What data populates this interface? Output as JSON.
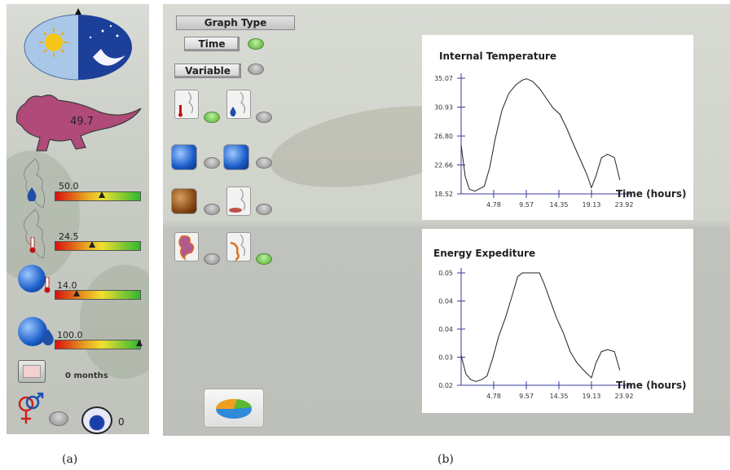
{
  "panel_a": {
    "body_temperature": "49.7",
    "humidity_value": "50.0",
    "humidity_level": 0.55,
    "temperature_value": "24.5",
    "temperature_level": 0.43,
    "env_temperature_value": "14.0",
    "env_temperature_level": 0.25,
    "env_humidity_value": "100.0",
    "env_humidity_level": 0.99,
    "months_label": "0 months",
    "offspring_count": "0",
    "icons": [
      "day-night-dial-icon",
      "lizard-icon",
      "water-drop-icon",
      "thermometer-icon",
      "globe-thermometer-icon",
      "globe-drop-icon",
      "calendar-icon",
      "gender-icon",
      "egg-icon"
    ]
  },
  "panel_b": {
    "graph_type_label": "Graph Type",
    "time_button": "Time",
    "variable_button": "Variable",
    "toggles": [
      {
        "name": "time",
        "on": true
      },
      {
        "name": "variable",
        "on": false
      },
      {
        "name": "internal-temperature",
        "on": true
      },
      {
        "name": "internal-water",
        "on": false
      },
      {
        "name": "env-temperature",
        "on": false
      },
      {
        "name": "env-humidity",
        "on": false
      },
      {
        "name": "soil-temperature",
        "on": false
      },
      {
        "name": "substrate",
        "on": false
      },
      {
        "name": "energy",
        "on": false
      },
      {
        "name": "energy-expenditure",
        "on": true
      }
    ]
  },
  "captions": {
    "a": "(a)",
    "b": "(b)"
  },
  "chart_data": [
    {
      "type": "line",
      "title": "Internal Temperature",
      "xlabel": "Time (hours)",
      "ylabel": "",
      "x_ticks": [
        "4.78",
        "9.57",
        "14.35",
        "19.13",
        "23.92"
      ],
      "y_ticks": [
        "18.52",
        "22.66",
        "26.80",
        "30.93",
        "35.07"
      ],
      "xlim": [
        0,
        23.92
      ],
      "ylim": [
        18.52,
        35.07
      ],
      "color": "#222222",
      "x": [
        0,
        0.6,
        1.2,
        2,
        2.6,
        3.4,
        4.2,
        5,
        6,
        7,
        8,
        9,
        9.6,
        10.5,
        11.5,
        12.5,
        13.5,
        14.5,
        15.5,
        16.5,
        17.5,
        18.5,
        19.13,
        19.8,
        20.6,
        21.5,
        22.5,
        23.3
      ],
      "y": [
        25.5,
        21.0,
        19.2,
        18.9,
        19.2,
        19.6,
        22.3,
        26.4,
        30.5,
        32.9,
        34.1,
        34.8,
        35.0,
        34.6,
        33.6,
        32.2,
        30.8,
        29.9,
        27.9,
        25.6,
        23.4,
        21.2,
        19.4,
        21.1,
        23.7,
        24.2,
        23.7,
        20.5
      ]
    },
    {
      "type": "line",
      "title": "Energy Expediture",
      "xlabel": "Time (hours)",
      "ylabel": "",
      "x_ticks": [
        "4.78",
        "9.57",
        "14.35",
        "19.13",
        "23.92"
      ],
      "y_ticks": [
        "0.02",
        "0.03",
        "0.04",
        "0.04",
        "0.05"
      ],
      "xlim": [
        0,
        23.92
      ],
      "ylim": [
        0.02,
        0.05
      ],
      "color": "#222222",
      "x": [
        0,
        0.7,
        1.4,
        2.2,
        3,
        3.8,
        4.6,
        5.5,
        6.5,
        7.5,
        8.3,
        9,
        9.57,
        10.5,
        11.5,
        12.2,
        13,
        14,
        15,
        16,
        17,
        18,
        19.13,
        19.8,
        20.6,
        21.5,
        22.5,
        23.3
      ],
      "y": [
        0.028,
        0.023,
        0.0215,
        0.021,
        0.0215,
        0.0225,
        0.027,
        0.033,
        0.038,
        0.044,
        0.049,
        0.05,
        0.05,
        0.05,
        0.05,
        0.047,
        0.043,
        0.038,
        0.034,
        0.029,
        0.026,
        0.024,
        0.022,
        0.026,
        0.029,
        0.0295,
        0.029,
        0.024
      ]
    }
  ]
}
